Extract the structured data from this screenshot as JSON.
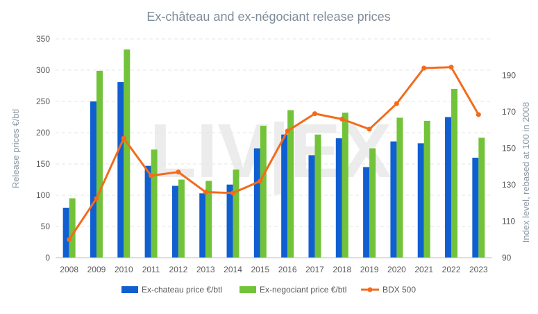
{
  "chart_data": {
    "type": "bar",
    "title": "Ex-château and ex-négociant release prices",
    "ylabel": "Release prices €/btl",
    "y2label": "Index level, rebased at 100 in 2008",
    "watermark": "LIV|EX",
    "categories": [
      "2008",
      "2009",
      "2010",
      "2011",
      "2012",
      "2013",
      "2014",
      "2015",
      "2016",
      "2017",
      "2018",
      "2019",
      "2020",
      "2021",
      "2022",
      "2023"
    ],
    "ylim": [
      0,
      350
    ],
    "yticks": [
      0,
      50,
      100,
      150,
      200,
      250,
      300,
      350
    ],
    "y2lim": [
      90,
      210
    ],
    "y2ticks": [
      90,
      110,
      130,
      150,
      170,
      190
    ],
    "grid": true,
    "legend_position": "bottom",
    "colors": {
      "chateau": "#0f5fd1",
      "negociant": "#72c33a",
      "bdx": "#f26b1d"
    },
    "series": [
      {
        "name": "Ex-chateau price €/btl",
        "type": "bar",
        "axis": "left",
        "values": [
          80,
          250,
          281,
          147,
          115,
          103,
          117,
          175,
          197,
          164,
          191,
          145,
          186,
          183,
          225,
          160
        ]
      },
      {
        "name": "Ex-negociant price €/btl",
        "type": "bar",
        "axis": "left",
        "values": [
          95,
          299,
          333,
          173,
          125,
          123,
          141,
          211,
          236,
          197,
          232,
          175,
          224,
          219,
          270,
          192
        ]
      },
      {
        "name": "BDX 500",
        "type": "line",
        "axis": "right",
        "values": [
          100,
          122.5,
          155.5,
          135,
          137,
          126,
          125.5,
          132,
          159.5,
          169,
          166,
          160.5,
          174.5,
          194,
          194.5,
          168.5
        ]
      }
    ]
  }
}
